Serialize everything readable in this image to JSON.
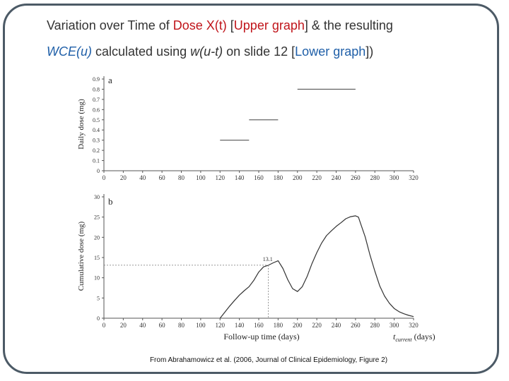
{
  "title": {
    "l1_a": "Variation over Time of ",
    "l1_b": "Dose X(t)",
    "l1_c": " [",
    "l1_d": "Upper graph",
    "l1_e": "] & the resulting",
    "l2_a": "WCE(u)",
    "l2_b": " calculated using ",
    "l2_c": "w(u-t)",
    "l2_d": " on slide 12 [",
    "l2_e": "Lower graph",
    "l2_f": "])"
  },
  "colors": {
    "title_red": "#c0141a",
    "title_blue": "#1f5fa8",
    "frame": "#4c5a66"
  },
  "citation": "From Abrahamowicz et al. (2006, Journal of Clinical Epidemiology, Figure 2)",
  "chart_data": [
    {
      "type": "line",
      "panel_label": "a",
      "ylabel": "Daily dose (mg)",
      "xlim": [
        0,
        320
      ],
      "ylim": [
        0,
        0.9
      ],
      "x_ticks": [
        0,
        20,
        40,
        60,
        80,
        100,
        120,
        140,
        160,
        180,
        200,
        220,
        240,
        260,
        280,
        300,
        320
      ],
      "y_ticks": [
        "0",
        "0.1",
        "0.2",
        "0.3",
        "0.4",
        "0.5",
        "0.6",
        "0.7",
        "0.8",
        "0.9"
      ],
      "segments": [
        {
          "x": [
            120,
            150
          ],
          "y": [
            0.3,
            0.3
          ]
        },
        {
          "x": [
            150,
            180
          ],
          "y": [
            0.5,
            0.5
          ]
        },
        {
          "x": [
            200,
            260
          ],
          "y": [
            0.8,
            0.8
          ]
        }
      ]
    },
    {
      "type": "line",
      "panel_label": "b",
      "ylabel": "Cumulative dose (mg)",
      "xlabel": "Follow-up time (days)",
      "xlabel_right": "t",
      "xlabel_right_sub": "current",
      "xlabel_right_unit": "(days)",
      "xlim": [
        0,
        320
      ],
      "ylim": [
        0,
        30
      ],
      "x_ticks": [
        0,
        20,
        40,
        60,
        80,
        100,
        120,
        140,
        160,
        180,
        200,
        220,
        240,
        260,
        280,
        300,
        320
      ],
      "y_ticks": [
        0,
        5,
        10,
        15,
        20,
        25,
        30
      ],
      "annotation": {
        "x": 170,
        "y": 13.1,
        "label": "13.1"
      },
      "series": [
        {
          "x": [
            120,
            125,
            130,
            135,
            140,
            145,
            150,
            155,
            160,
            165,
            170,
            175,
            180,
            185,
            190,
            195,
            200,
            205,
            210,
            215,
            220,
            225,
            230,
            235,
            240,
            245,
            250,
            255,
            260,
            263,
            265,
            270,
            275,
            280,
            285,
            290,
            295,
            300,
            305,
            310,
            315,
            320
          ],
          "y": [
            0,
            1.5,
            3,
            4.4,
            5.7,
            6.8,
            7.8,
            9.4,
            11.4,
            12.7,
            13.1,
            13.7,
            14.2,
            12.3,
            9.5,
            7.3,
            6.6,
            7.8,
            10.3,
            13.5,
            16.2,
            18.6,
            20.4,
            21.6,
            22.7,
            23.6,
            24.6,
            25.1,
            25.3,
            25.0,
            23.6,
            20.1,
            15.6,
            11.6,
            8.0,
            5.5,
            3.7,
            2.4,
            1.6,
            1.1,
            0.7,
            0.4
          ]
        }
      ]
    }
  ]
}
